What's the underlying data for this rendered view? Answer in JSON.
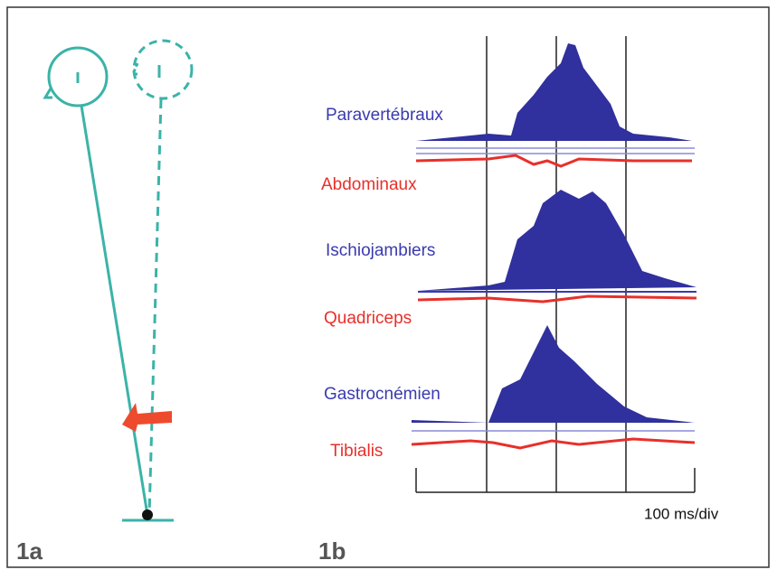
{
  "panels": {
    "a": {
      "label": "1a"
    },
    "b": {
      "label": "1b",
      "muscles": [
        "Paravertébraux",
        "Abdominaux",
        "Ischiojambiers",
        "Quadriceps",
        "Gastrocnémien",
        "Tibialis"
      ],
      "scale": "100 ms/div"
    }
  }
}
